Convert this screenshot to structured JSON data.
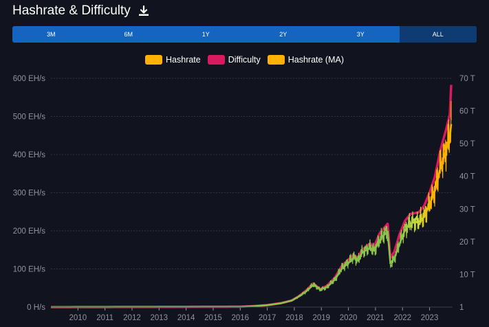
{
  "header": {
    "title": "Hashrate & Difficulty",
    "download_icon": "download-icon"
  },
  "tabs": [
    {
      "label": "3M",
      "active": false
    },
    {
      "label": "6M",
      "active": false
    },
    {
      "label": "1Y",
      "active": false
    },
    {
      "label": "2Y",
      "active": false
    },
    {
      "label": "3Y",
      "active": false
    },
    {
      "label": "ALL",
      "active": true
    }
  ],
  "colors": {
    "background": "#11141f",
    "tab_bar": "#1565c0",
    "tab_active": "#0d3b72",
    "hashrate": "#ffb300",
    "difficulty": "#d81b60",
    "hashrate_ma": "#ffb300",
    "hashrate_early": "#8bc34a",
    "grid": "#2f3445",
    "axis_text": "#8f939e"
  },
  "chart_data": {
    "type": "line",
    "title": "Hashrate & Difficulty",
    "legend": {
      "placement": "top-center",
      "entries": [
        {
          "name": "Hashrate",
          "color": "#ffb300"
        },
        {
          "name": "Difficulty",
          "color": "#d81b60"
        },
        {
          "name": "Hashrate (MA)",
          "color": "#ffb300"
        }
      ]
    },
    "x_ticks": [
      "2010",
      "2011",
      "2012",
      "2013",
      "2014",
      "2015",
      "2016",
      "2017",
      "2018",
      "2019",
      "2020",
      "2021",
      "2022",
      "2023"
    ],
    "xlim": [
      2009.0,
      2023.85
    ],
    "y_left": {
      "ticks": [
        "0 H/s",
        "100 EH/s",
        "200 EH/s",
        "300 EH/s",
        "400 EH/s",
        "500 EH/s",
        "600 EH/s"
      ],
      "ylim": [
        0,
        600
      ]
    },
    "y_right": {
      "ticks": [
        "1",
        "10 T",
        "20 T",
        "30 T",
        "40 T",
        "50 T",
        "60 T",
        "70 T"
      ],
      "ylim": [
        0,
        70
      ]
    },
    "grid": true,
    "series": [
      {
        "name": "Difficulty",
        "axis": "right",
        "x": [
          2009.0,
          2016.0,
          2016.5,
          2017.0,
          2017.5,
          2017.9,
          2018.2,
          2018.45,
          2018.7,
          2018.85,
          2018.95,
          2019.2,
          2019.5,
          2019.75,
          2020.0,
          2020.2,
          2020.35,
          2020.5,
          2020.8,
          2020.95,
          2021.15,
          2021.3,
          2021.45,
          2021.55,
          2021.7,
          2021.9,
          2022.1,
          2022.3,
          2022.6,
          2022.8,
          2023.0,
          2023.2,
          2023.4,
          2023.55,
          2023.65,
          2023.75,
          2023.8
        ],
        "values": [
          0,
          0.1,
          0.3,
          0.6,
          1.2,
          2.0,
          3.5,
          5.2,
          7.2,
          6.2,
          5.5,
          6.5,
          9.0,
          12.5,
          14.5,
          16.0,
          15.0,
          17.5,
          19.5,
          18.5,
          22.5,
          24.0,
          25.5,
          15.0,
          17.0,
          22.5,
          26.5,
          28.5,
          29.0,
          31.0,
          35.0,
          40.0,
          48.0,
          52.5,
          55.5,
          59.0,
          68.0
        ]
      },
      {
        "name": "Hashrate",
        "axis": "left",
        "x": [
          2009.0,
          2016.0,
          2016.5,
          2017.0,
          2017.5,
          2017.9,
          2018.2,
          2018.45,
          2018.7,
          2018.85,
          2018.95,
          2019.2,
          2019.5,
          2019.75,
          2020.0,
          2020.2,
          2020.35,
          2020.5,
          2020.8,
          2020.95,
          2021.15,
          2021.3,
          2021.45,
          2021.55,
          2021.7,
          2021.9,
          2022.1,
          2022.3,
          2022.6,
          2022.8,
          2023.0,
          2023.2,
          2023.4,
          2023.55,
          2023.65,
          2023.75,
          2023.8
        ],
        "values": [
          0,
          0.8,
          2.3,
          5,
          10,
          17,
          29,
          42,
          60,
          52,
          45,
          52,
          73,
          102,
          118,
          132,
          122,
          143,
          158,
          148,
          176,
          190,
          200,
          110,
          128,
          170,
          205,
          222,
          225,
          238,
          270,
          308,
          370,
          400,
          425,
          450,
          490
        ]
      },
      {
        "name": "Hashrate (MA)",
        "axis": "left",
        "x": [
          2009.0,
          2016.0,
          2016.5,
          2017.0,
          2017.5,
          2017.9,
          2018.2,
          2018.45,
          2018.7,
          2018.85,
          2018.95,
          2019.2,
          2019.5,
          2019.75,
          2020.0,
          2020.2,
          2020.35,
          2020.5,
          2020.8,
          2020.95,
          2021.15,
          2021.3,
          2021.45,
          2021.55,
          2021.7,
          2021.9,
          2022.1,
          2022.3,
          2022.6,
          2022.8,
          2023.0,
          2023.2,
          2023.4,
          2023.55,
          2023.65,
          2023.75,
          2023.8
        ],
        "values": [
          0,
          0.8,
          2.3,
          5,
          10,
          17,
          29,
          42,
          58,
          52,
          46,
          52,
          72,
          100,
          116,
          130,
          122,
          142,
          156,
          148,
          174,
          188,
          198,
          115,
          128,
          168,
          203,
          220,
          224,
          236,
          268,
          305,
          365,
          398,
          420,
          445,
          480
        ]
      }
    ]
  }
}
